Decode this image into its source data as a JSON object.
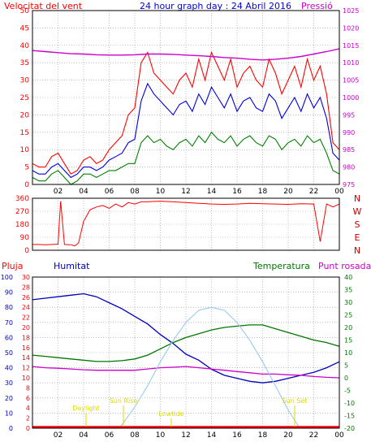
{
  "title": "24 hour graph day : 24 Abril 2016",
  "colors": {
    "background": "#ffffff",
    "grid": "#9a9a9a",
    "frame": "#000000",
    "wind_gust": "#ff0000",
    "wind_avg": "#0000dd",
    "wind_min": "#008000",
    "pressure": "#cc00cc",
    "direction": "#ff0000",
    "humidity": "#0000bb",
    "temperature": "#007700",
    "dewpoint": "#cc00cc",
    "solar": "#99ccee",
    "rain": "#ff0000",
    "astro": "#dddd00"
  },
  "chart_data": [
    {
      "type": "line",
      "id": "wind-pressure",
      "title": "24 hour graph day : 24 Abril 2016",
      "ylabel_left": "Velocitat del vent",
      "ylabel_right": "Pressió",
      "x_ticks": [
        "02",
        "04",
        "06",
        "08",
        "10",
        "12",
        "14",
        "16",
        "18",
        "20",
        "22",
        "00"
      ],
      "ylim_left": [
        0,
        50
      ],
      "yticks_left": [
        0,
        5,
        10,
        15,
        20,
        25,
        30,
        35,
        40,
        45,
        50
      ],
      "ylim_right": [
        975,
        1025
      ],
      "yticks_right": [
        975,
        980,
        985,
        990,
        995,
        1000,
        1005,
        1010,
        1015,
        1020,
        1025
      ],
      "series": [
        {
          "id": "gust",
          "x": [
            0,
            0.5,
            1,
            1.5,
            2,
            2.5,
            3,
            3.5,
            4,
            4.5,
            5,
            5.5,
            6,
            6.5,
            7,
            7.5,
            8,
            8.5,
            9,
            9.5,
            10,
            10.5,
            11,
            11.5,
            12,
            12.5,
            13,
            13.5,
            14,
            14.5,
            15,
            15.5,
            16,
            16.5,
            17,
            17.5,
            18,
            18.5,
            19,
            19.5,
            20,
            20.5,
            21,
            21.5,
            22,
            22.5,
            23,
            23.5,
            24
          ],
          "values": [
            6,
            5,
            5,
            8,
            9,
            6,
            3,
            4,
            7,
            8,
            6,
            7,
            10,
            12,
            14,
            20,
            22,
            35,
            38,
            32,
            30,
            28,
            26,
            30,
            32,
            28,
            36,
            30,
            38,
            34,
            30,
            36,
            28,
            32,
            34,
            30,
            28,
            36,
            32,
            26,
            30,
            34,
            28,
            36,
            30,
            34,
            26,
            12,
            10
          ]
        },
        {
          "id": "average",
          "x": [
            0,
            0.5,
            1,
            1.5,
            2,
            2.5,
            3,
            3.5,
            4,
            4.5,
            5,
            5.5,
            6,
            6.5,
            7,
            7.5,
            8,
            8.5,
            9,
            9.5,
            10,
            10.5,
            11,
            11.5,
            12,
            12.5,
            13,
            13.5,
            14,
            14.5,
            15,
            15.5,
            16,
            16.5,
            17,
            17.5,
            18,
            18.5,
            19,
            19.5,
            20,
            20.5,
            21,
            21.5,
            22,
            22.5,
            23,
            23.5,
            24
          ],
          "values": [
            4,
            3,
            3,
            5,
            6,
            4,
            2,
            3,
            5,
            5,
            4,
            5,
            7,
            8,
            9,
            12,
            13,
            24,
            29,
            26,
            24,
            22,
            20,
            23,
            24,
            21,
            26,
            23,
            28,
            25,
            22,
            26,
            21,
            24,
            25,
            22,
            21,
            26,
            24,
            19,
            22,
            25,
            21,
            26,
            22,
            25,
            19,
            9,
            7
          ]
        },
        {
          "id": "minimum",
          "x": [
            0,
            0.5,
            1,
            1.5,
            2,
            2.5,
            3,
            3.5,
            4,
            4.5,
            5,
            5.5,
            6,
            6.5,
            7,
            7.5,
            8,
            8.5,
            9,
            9.5,
            10,
            10.5,
            11,
            11.5,
            12,
            12.5,
            13,
            13.5,
            14,
            14.5,
            15,
            15.5,
            16,
            16.5,
            17,
            17.5,
            18,
            18.5,
            19,
            19.5,
            20,
            20.5,
            21,
            21.5,
            22,
            22.5,
            23,
            23.5,
            24
          ],
          "values": [
            2,
            1,
            1,
            3,
            4,
            2,
            0,
            1,
            3,
            3,
            2,
            3,
            4,
            4,
            5,
            6,
            6,
            12,
            14,
            12,
            13,
            11,
            10,
            12,
            13,
            11,
            14,
            12,
            15,
            13,
            12,
            14,
            11,
            13,
            14,
            12,
            11,
            14,
            13,
            10,
            12,
            13,
            11,
            14,
            12,
            13,
            9,
            4,
            3
          ]
        },
        {
          "id": "pressure",
          "axis": "right",
          "x": [
            0,
            1,
            2,
            3,
            4,
            5,
            6,
            7,
            8,
            9,
            10,
            11,
            12,
            13,
            14,
            15,
            16,
            17,
            18,
            19,
            20,
            21,
            22,
            23,
            24
          ],
          "values": [
            1013.5,
            1013.2,
            1012.9,
            1012.6,
            1012.5,
            1012.3,
            1012.2,
            1012.2,
            1012.3,
            1012.5,
            1012.5,
            1012.4,
            1012.2,
            1012.0,
            1011.8,
            1011.5,
            1011.3,
            1011.0,
            1010.8,
            1011.0,
            1011.3,
            1011.8,
            1012.5,
            1013.2,
            1014.0
          ]
        }
      ]
    },
    {
      "type": "scatter",
      "id": "wind-direction",
      "x_ticks": [
        "02",
        "04",
        "06",
        "08",
        "10",
        "12",
        "14",
        "16",
        "18",
        "20",
        "22",
        "00"
      ],
      "ylim": [
        0,
        360
      ],
      "yticks": [
        0,
        90,
        180,
        270,
        360
      ],
      "compass_labels": [
        "N",
        "W",
        "S",
        "E",
        "N"
      ],
      "series": [
        {
          "id": "direction",
          "x": [
            0,
            0.5,
            1,
            1.5,
            2,
            2.2,
            2.5,
            3,
            3.3,
            3.6,
            4,
            4.5,
            5,
            5.5,
            6,
            6.5,
            7,
            7.5,
            8,
            8.5,
            9,
            9.5,
            10,
            11,
            12,
            13,
            14,
            15,
            16,
            17,
            18,
            19,
            20,
            21,
            22,
            22.5,
            23,
            23.5,
            24
          ],
          "values": [
            40,
            40,
            38,
            40,
            42,
            340,
            40,
            38,
            30,
            50,
            200,
            280,
            300,
            310,
            290,
            320,
            300,
            330,
            320,
            335,
            335,
            338,
            340,
            335,
            330,
            325,
            320,
            318,
            320,
            325,
            322,
            320,
            318,
            322,
            320,
            60,
            320,
            300,
            320
          ]
        }
      ]
    },
    {
      "type": "line",
      "id": "temp-humidity",
      "legend": [
        "Pluja",
        "Humitat",
        "Temperatura",
        "Punt rosada"
      ],
      "x_ticks": [
        "02",
        "04",
        "06",
        "08",
        "10",
        "12",
        "14",
        "16",
        "18",
        "20",
        "22",
        "00"
      ],
      "ylim_humidity": [
        0,
        100
      ],
      "yticks_humidity": [
        0,
        10,
        20,
        30,
        40,
        50,
        60,
        70,
        80,
        90,
        100
      ],
      "ylim_rain": [
        0,
        30
      ],
      "yticks_rain": [
        0,
        2,
        4,
        6,
        8,
        10,
        12,
        14,
        16,
        18,
        20,
        22,
        24,
        26,
        28,
        30
      ],
      "ylim_temp": [
        -20,
        40
      ],
      "yticks_temp": [
        -20,
        -15,
        -10,
        -5,
        0,
        5,
        10,
        15,
        20,
        25,
        30,
        35,
        40
      ],
      "annotations": [
        "Daylight",
        "Sun Rise",
        "Lowtide",
        "Sun Set"
      ],
      "series": [
        {
          "id": "humidity",
          "x": [
            0,
            1,
            2,
            3,
            4,
            5,
            6,
            7,
            8,
            9,
            10,
            11,
            12,
            13,
            14,
            15,
            16,
            17,
            18,
            19,
            20,
            21,
            22,
            23,
            24
          ],
          "values": [
            85,
            86,
            87,
            88,
            89,
            87,
            83,
            79,
            74,
            69,
            62,
            56,
            49,
            45,
            39,
            35,
            33,
            31,
            30,
            31,
            33,
            35,
            37,
            40,
            44
          ]
        },
        {
          "id": "temperature",
          "x": [
            0,
            1,
            2,
            3,
            4,
            5,
            6,
            7,
            8,
            9,
            10,
            11,
            12,
            13,
            14,
            15,
            16,
            17,
            18,
            19,
            20,
            21,
            22,
            23,
            24
          ],
          "values": [
            9,
            8.5,
            8,
            7.5,
            7,
            6.5,
            6.5,
            6.8,
            7.5,
            9,
            11.5,
            14,
            16,
            17.5,
            19,
            20,
            20.5,
            21,
            21,
            19.5,
            18,
            16.5,
            15,
            14,
            12.5
          ]
        },
        {
          "id": "dewpoint",
          "x": [
            0,
            1,
            2,
            3,
            4,
            5,
            6,
            7,
            8,
            9,
            10,
            11,
            12,
            13,
            14,
            15,
            16,
            17,
            18,
            19,
            20,
            21,
            22,
            23,
            24
          ],
          "values": [
            4.5,
            4,
            3.8,
            3.5,
            3.2,
            3,
            3,
            3,
            3,
            3.5,
            4,
            4.2,
            4.5,
            4,
            3.5,
            3,
            2.5,
            2,
            1.5,
            1.5,
            1.2,
            1,
            0.5,
            0.2,
            0
          ]
        },
        {
          "id": "solar",
          "x": [
            6.8,
            8,
            9,
            10,
            11,
            12,
            13,
            14,
            15,
            16,
            17,
            18,
            19,
            20,
            20.9
          ],
          "values": [
            0,
            14,
            28,
            44,
            58,
            70,
            78,
            80,
            78,
            70,
            58,
            44,
            28,
            12,
            0
          ]
        },
        {
          "id": "rain",
          "x": [
            0,
            24
          ],
          "values": [
            0,
            0
          ]
        }
      ]
    }
  ]
}
